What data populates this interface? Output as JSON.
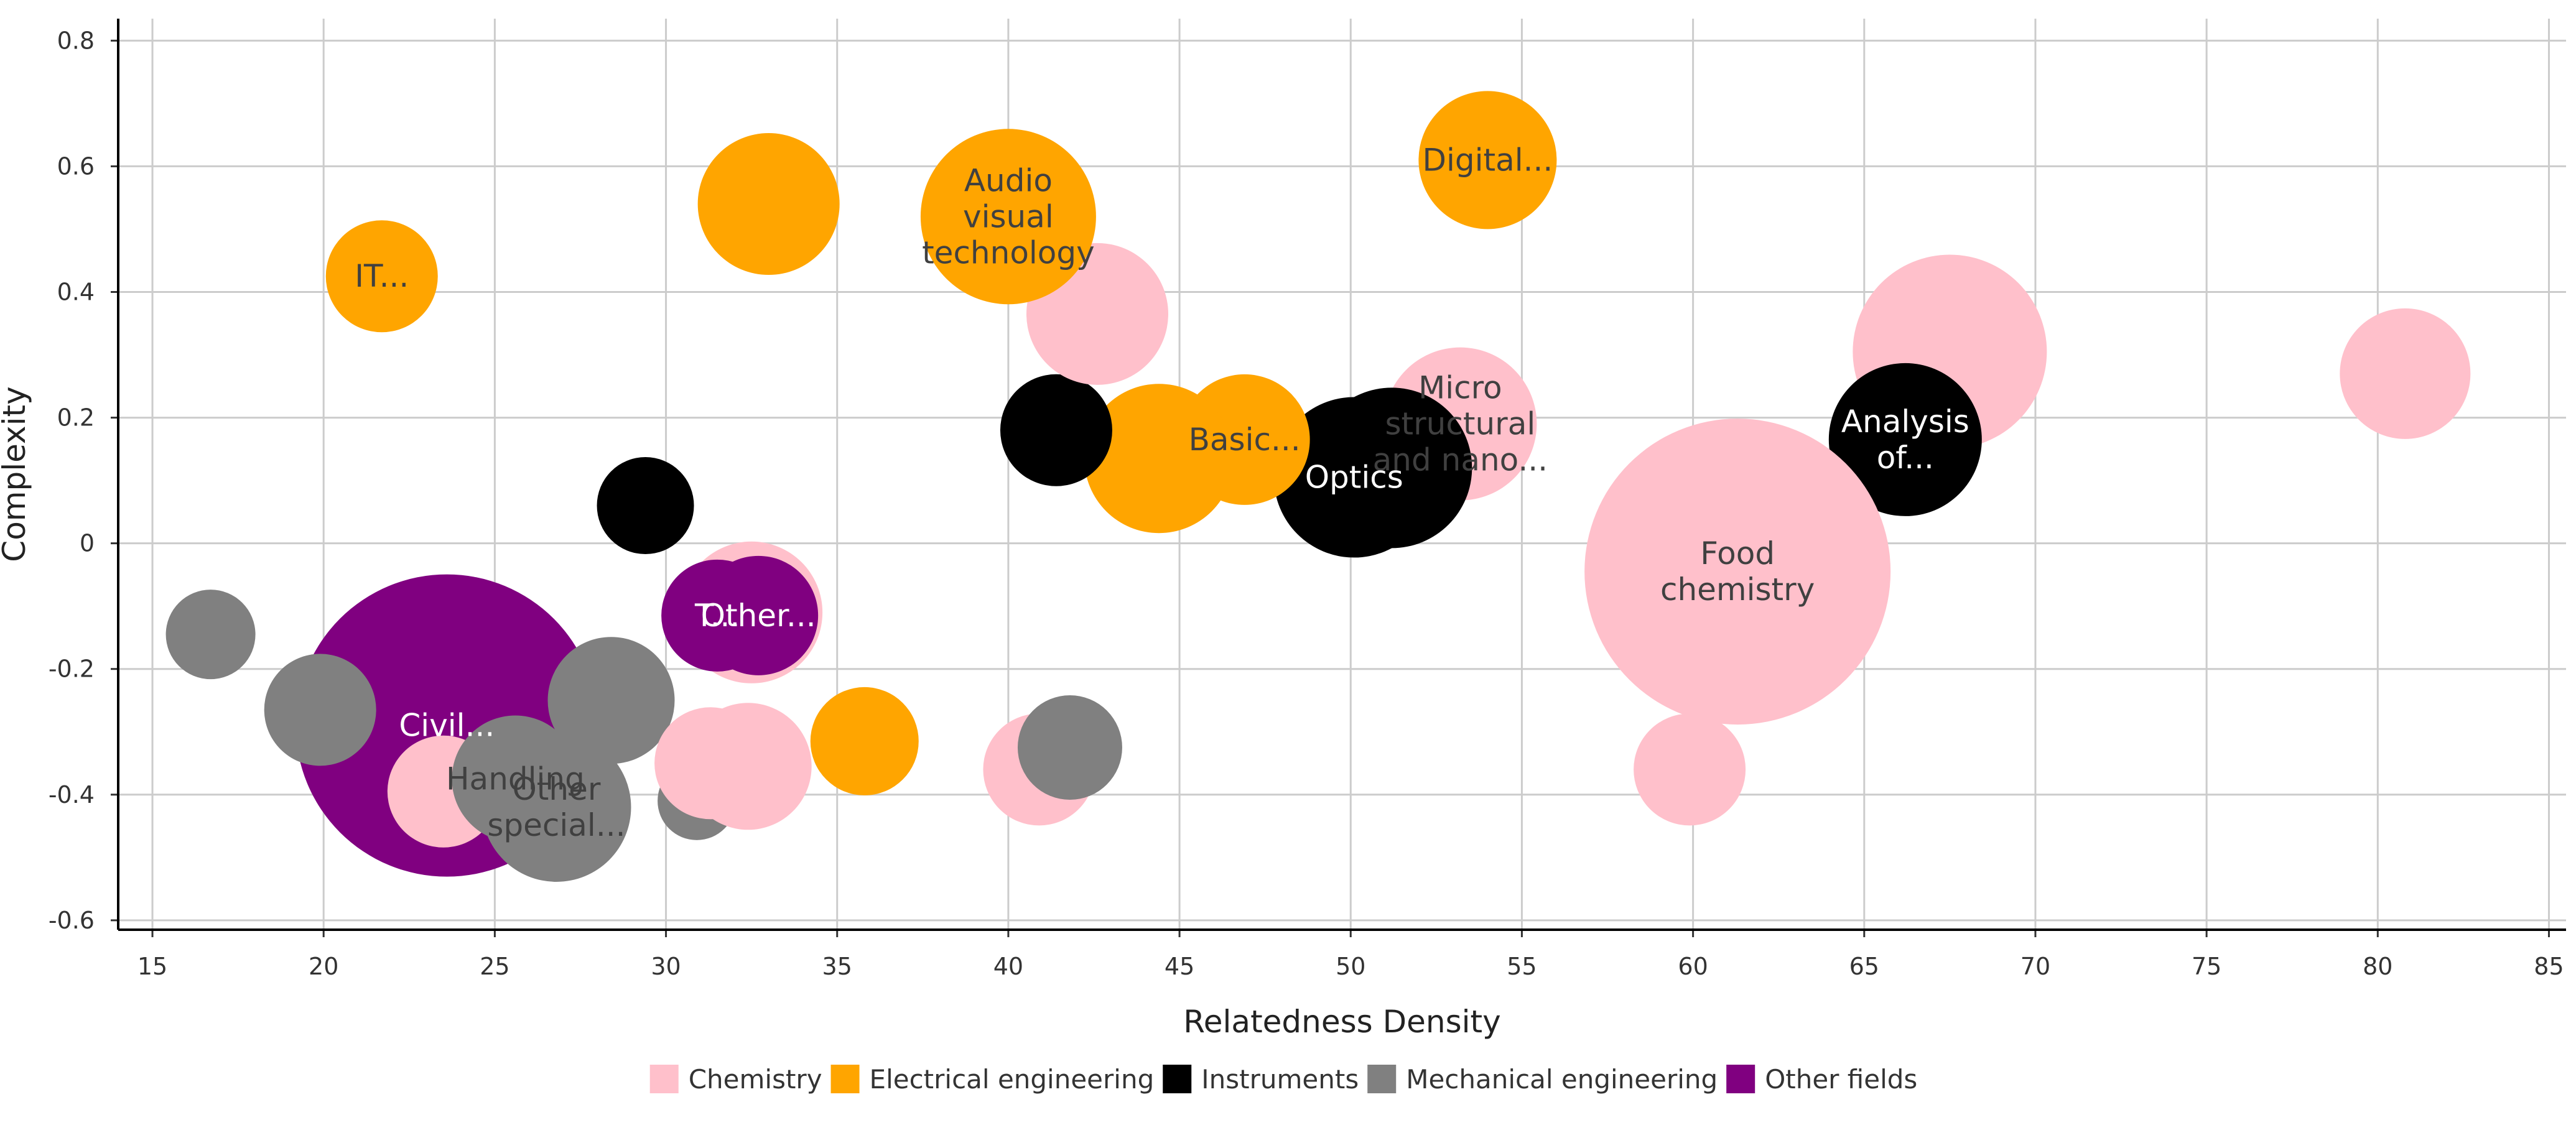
{
  "chart_data": {
    "type": "scatter",
    "xlabel": "Relatedness Density",
    "ylabel": "Complexity",
    "xlim": [
      14,
      85.5
    ],
    "ylim": [
      -0.615,
      0.835
    ],
    "xticks": [
      15,
      20,
      25,
      30,
      35,
      40,
      45,
      50,
      55,
      60,
      65,
      70,
      75,
      80,
      85
    ],
    "yticks": [
      -0.6,
      -0.4,
      -0.2,
      0,
      0.2,
      0.4,
      0.6,
      0.8
    ],
    "grid": true,
    "legend_position": "bottom-center",
    "colors": {
      "Chemistry": "#FFC0CB",
      "Electrical engineering": "#FFA500",
      "Instruments": "#000000",
      "Mechanical engineering": "#808080",
      "Other fields": "#800080"
    },
    "label_colors": {
      "Chemistry": "#404040",
      "Electrical engineering": "#404040",
      "Instruments": "#ffffff",
      "Mechanical engineering": "#404040",
      "Other fields": "#ffffff"
    },
    "legend": [
      "Chemistry",
      "Electrical engineering",
      "Instruments",
      "Mechanical engineering",
      "Other fields"
    ],
    "points": [
      {
        "series": "Other fields",
        "x": 23.6,
        "y": -0.29,
        "size": 81,
        "label": "Civil..."
      },
      {
        "series": "Chemistry",
        "x": 80.8,
        "y": 0.27,
        "size": 35,
        "label": ""
      },
      {
        "series": "Chemistry",
        "x": 67.5,
        "y": 0.305,
        "size": 52,
        "label": ""
      },
      {
        "series": "Instruments",
        "x": 66.2,
        "y": 0.165,
        "size": 41,
        "label": "Analysis of..."
      },
      {
        "series": "Chemistry",
        "x": 61.3,
        "y": -0.045,
        "size": 82,
        "label": "Food chemistry"
      },
      {
        "series": "Chemistry",
        "x": 59.9,
        "y": -0.36,
        "size": 30,
        "label": ""
      },
      {
        "series": "Electrical engineering",
        "x": 54.0,
        "y": 0.61,
        "size": 37,
        "label": "Digital..."
      },
      {
        "series": "Chemistry",
        "x": 53.2,
        "y": 0.19,
        "size": 41,
        "label": "Micro structural and nano..."
      },
      {
        "series": "Instruments",
        "x": 51.2,
        "y": 0.12,
        "size": 43,
        "label": ""
      },
      {
        "series": "Instruments",
        "x": 50.1,
        "y": 0.105,
        "size": 43,
        "label": "Optics"
      },
      {
        "series": "Electrical engineering",
        "x": 46.9,
        "y": 0.165,
        "size": 35,
        "label": "Basic..."
      },
      {
        "series": "Electrical engineering",
        "x": 44.4,
        "y": 0.135,
        "size": 40,
        "label": ""
      },
      {
        "series": "Instruments",
        "x": 41.4,
        "y": 0.18,
        "size": 30,
        "label": ""
      },
      {
        "series": "Chemistry",
        "x": 42.6,
        "y": 0.365,
        "size": 38,
        "label": ""
      },
      {
        "series": "Electrical engineering",
        "x": 40.0,
        "y": 0.52,
        "size": 47,
        "label": "Audio visual technology"
      },
      {
        "series": "Electrical engineering",
        "x": 33.0,
        "y": 0.54,
        "size": 38,
        "label": ""
      },
      {
        "series": "Electrical engineering",
        "x": 21.7,
        "y": 0.425,
        "size": 30,
        "label": "IT..."
      },
      {
        "series": "Instruments",
        "x": 29.4,
        "y": 0.06,
        "size": 26,
        "label": ""
      },
      {
        "series": "Mechanical engineering",
        "x": 16.7,
        "y": -0.145,
        "size": 24,
        "label": ""
      },
      {
        "series": "Mechanical engineering",
        "x": 19.9,
        "y": -0.265,
        "size": 30,
        "label": ""
      },
      {
        "series": "Mechanical engineering",
        "x": 30.9,
        "y": -0.41,
        "size": 21,
        "label": ""
      },
      {
        "series": "Mechanical engineering",
        "x": 28.4,
        "y": -0.25,
        "size": 34,
        "label": ""
      },
      {
        "series": "Chemistry",
        "x": 23.5,
        "y": -0.395,
        "size": 30,
        "label": ""
      },
      {
        "series": "Mechanical engineering",
        "x": 25.6,
        "y": -0.375,
        "size": 34,
        "label": "Handling"
      },
      {
        "series": "Mechanical engineering",
        "x": 26.8,
        "y": -0.42,
        "size": 40,
        "label": "Other special..."
      },
      {
        "series": "Chemistry",
        "x": 32.4,
        "y": -0.355,
        "size": 34,
        "label": ""
      },
      {
        "series": "Chemistry",
        "x": 31.3,
        "y": -0.35,
        "size": 30,
        "label": ""
      },
      {
        "series": "Electrical engineering",
        "x": 35.8,
        "y": -0.315,
        "size": 29,
        "label": ""
      },
      {
        "series": "Chemistry",
        "x": 40.9,
        "y": -0.36,
        "size": 30,
        "label": ""
      },
      {
        "series": "Mechanical engineering",
        "x": 41.8,
        "y": -0.325,
        "size": 28,
        "label": ""
      },
      {
        "series": "Chemistry",
        "x": 32.5,
        "y": -0.11,
        "size": 38,
        "label": ""
      },
      {
        "series": "Other fields",
        "x": 31.5,
        "y": -0.115,
        "size": 30,
        "label": "T..."
      },
      {
        "series": "Other fields",
        "x": 32.7,
        "y": -0.115,
        "size": 32,
        "label": "Other..."
      }
    ]
  }
}
